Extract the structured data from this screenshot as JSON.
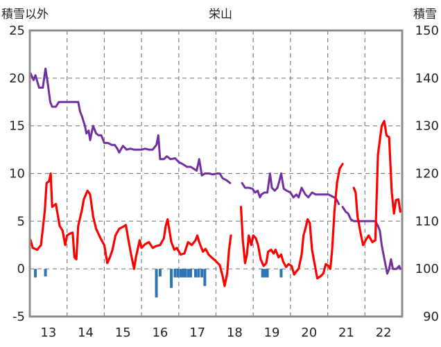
{
  "chart_data": {
    "type": "line",
    "title": "栄山",
    "ylabel_left": "積雪以外",
    "ylabel_right": "積雪",
    "x_ticks": [
      "13",
      "14",
      "15",
      "16",
      "17",
      "18",
      "19",
      "20",
      "21",
      "22"
    ],
    "xlim": [
      12.5,
      22.5
    ],
    "y_left_ticks": [
      "25",
      "20",
      "15",
      "10",
      "5",
      "0",
      "-5"
    ],
    "ylim_left": [
      -5,
      25
    ],
    "y_right_ticks": [
      "150",
      "140",
      "130",
      "120",
      "110",
      "100",
      "90"
    ],
    "ylim_right": [
      90,
      150
    ],
    "grid": "dashed",
    "colors": {
      "temperature": "#ff0000",
      "snow_depth": "#7030a0",
      "precipitation": "#2e75b6",
      "grid": "#808080"
    },
    "series": [
      {
        "axis": "left",
        "style": "line",
        "color": "#ff0000",
        "segments": [
          [
            [
              12.52,
              3
            ],
            [
              12.58,
              2.2
            ],
            [
              12.7,
              2
            ],
            [
              12.8,
              2.5
            ],
            [
              12.9,
              6
            ],
            [
              12.95,
              9
            ],
            [
              13.02,
              9.2
            ],
            [
              13.06,
              10
            ],
            [
              13.1,
              6.5
            ],
            [
              13.2,
              6.8
            ],
            [
              13.3,
              4.5
            ],
            [
              13.38,
              4
            ],
            [
              13.45,
              2.5
            ],
            [
              13.5,
              3.5
            ],
            [
              13.58,
              3.7
            ],
            [
              13.65,
              3.8
            ],
            [
              13.7,
              1.2
            ],
            [
              13.75,
              1
            ],
            [
              13.8,
              4.5
            ],
            [
              13.9,
              6.2
            ],
            [
              13.95,
              7.3
            ],
            [
              14.05,
              8.2
            ],
            [
              14.12,
              7.8
            ],
            [
              14.2,
              5.5
            ],
            [
              14.28,
              4.2
            ],
            [
              14.4,
              3.2
            ],
            [
              14.5,
              2.5
            ],
            [
              14.58,
              0.6
            ],
            [
              14.65,
              1.2
            ],
            [
              14.72,
              2
            ],
            [
              14.8,
              3.5
            ],
            [
              14.9,
              4.2
            ],
            [
              15.0,
              4.4
            ],
            [
              15.08,
              4.6
            ],
            [
              15.15,
              3
            ],
            [
              15.22,
              1.5
            ],
            [
              15.3,
              0
            ],
            [
              15.35,
              1.2
            ],
            [
              15.45,
              3
            ],
            [
              15.5,
              2.2
            ],
            [
              15.6,
              2.6
            ],
            [
              15.7,
              2.8
            ],
            [
              15.8,
              2.2
            ],
            [
              15.9,
              2.4
            ],
            [
              16.0,
              2.5
            ],
            [
              16.1,
              3.2
            ],
            [
              16.15,
              4.5
            ],
            [
              16.2,
              5.2
            ],
            [
              16.25,
              4
            ],
            [
              16.3,
              2.8
            ],
            [
              16.38,
              2
            ],
            [
              16.45,
              2.2
            ],
            [
              16.55,
              1.5
            ],
            [
              16.65,
              1.6
            ],
            [
              16.75,
              2.8
            ],
            [
              16.85,
              2.5
            ],
            [
              16.95,
              3
            ],
            [
              17.0,
              3.5
            ],
            [
              17.05,
              2.8
            ],
            [
              17.15,
              1.8
            ],
            [
              17.22,
              2.1
            ],
            [
              17.3,
              1.5
            ],
            [
              17.38,
              1.2
            ],
            [
              17.5,
              0.8
            ],
            [
              17.6,
              0.4
            ],
            [
              17.68,
              -0.8
            ],
            [
              17.73,
              -1.8
            ],
            [
              17.8,
              -0.5
            ],
            [
              17.85,
              2
            ],
            [
              17.9,
              3.5
            ]
          ],
          [
            [
              18.17,
              6.5
            ],
            [
              18.22,
              3
            ],
            [
              18.28,
              0.6
            ],
            [
              18.33,
              1.5
            ],
            [
              18.38,
              3.5
            ],
            [
              18.45,
              2.5
            ],
            [
              18.5,
              3.5
            ],
            [
              18.57,
              3.2
            ],
            [
              18.63,
              2.5
            ],
            [
              18.7,
              1
            ],
            [
              18.78,
              0.3
            ],
            [
              18.85,
              0.6
            ],
            [
              18.9,
              1.8
            ],
            [
              18.98,
              2
            ],
            [
              19.05,
              1.6
            ],
            [
              19.1,
              2
            ],
            [
              19.18,
              1.2
            ],
            [
              19.25,
              1.5
            ],
            [
              19.3,
              0.8
            ],
            [
              19.38,
              0.2
            ],
            [
              19.45,
              0.5
            ],
            [
              19.53,
              0.3
            ],
            [
              19.6,
              -0.6
            ],
            [
              19.65,
              -0.3
            ],
            [
              19.72,
              0
            ],
            [
              19.8,
              1.5
            ],
            [
              19.85,
              3.5
            ],
            [
              19.9,
              4.2
            ],
            [
              19.96,
              5.2
            ],
            [
              20.02,
              4.8
            ],
            [
              20.08,
              2
            ],
            [
              20.15,
              0.5
            ],
            [
              20.22,
              -1
            ],
            [
              20.3,
              -0.8
            ],
            [
              20.38,
              -0.5
            ],
            [
              20.45,
              0.5
            ],
            [
              20.52,
              0.3
            ],
            [
              20.57,
              0
            ],
            [
              20.62,
              2
            ],
            [
              20.68,
              6
            ],
            [
              20.75,
              9
            ],
            [
              20.82,
              10.5
            ],
            [
              20.9,
              11
            ]
          ],
          [
            [
              21.2,
              8.5
            ],
            [
              21.25,
              8
            ],
            [
              21.3,
              5.5
            ],
            [
              21.38,
              3.8
            ],
            [
              21.45,
              2.5
            ],
            [
              21.52,
              3
            ],
            [
              21.6,
              3.5
            ],
            [
              21.7,
              2.8
            ],
            [
              21.78,
              3
            ],
            [
              21.85,
              12
            ],
            [
              21.9,
              13.5
            ],
            [
              21.95,
              15
            ],
            [
              22.02,
              15.5
            ],
            [
              22.08,
              14
            ],
            [
              22.15,
              13.8
            ],
            [
              22.22,
              8
            ],
            [
              22.28,
              5.8
            ],
            [
              22.33,
              7.2
            ],
            [
              22.4,
              7.3
            ],
            [
              22.45,
              6
            ]
          ]
        ]
      },
      {
        "axis": "left",
        "style": "line",
        "color": "#7030a0",
        "segments": [
          [
            [
              12.52,
              20.5
            ],
            [
              12.6,
              19.8
            ],
            [
              12.65,
              20.3
            ],
            [
              12.75,
              19
            ],
            [
              12.85,
              19
            ],
            [
              12.92,
              21
            ],
            [
              12.98,
              19.5
            ],
            [
              13.05,
              17.5
            ],
            [
              13.1,
              17
            ],
            [
              13.2,
              17
            ],
            [
              13.28,
              17.5
            ],
            [
              13.4,
              17.5
            ],
            [
              13.55,
              17.5
            ],
            [
              13.7,
              17.5
            ],
            [
              13.8,
              17.5
            ],
            [
              13.85,
              16.5
            ],
            [
              13.9,
              16
            ],
            [
              13.98,
              15
            ],
            [
              14.02,
              14.2
            ],
            [
              14.08,
              14.5
            ],
            [
              14.12,
              13.5
            ],
            [
              14.2,
              15
            ],
            [
              14.28,
              14.2
            ],
            [
              14.35,
              14
            ],
            [
              14.42,
              14
            ],
            [
              14.5,
              13.2
            ],
            [
              14.6,
              13.2
            ],
            [
              14.7,
              13
            ],
            [
              14.78,
              13
            ],
            [
              14.85,
              12.6
            ],
            [
              14.9,
              12.2
            ],
            [
              15.0,
              12.9
            ],
            [
              15.1,
              12.5
            ],
            [
              15.2,
              12.6
            ],
            [
              15.3,
              12.5
            ],
            [
              15.4,
              12.5
            ],
            [
              15.5,
              12.5
            ],
            [
              15.6,
              12.6
            ],
            [
              15.7,
              12.5
            ],
            [
              15.8,
              12.5
            ],
            [
              15.9,
              13
            ],
            [
              15.95,
              14
            ],
            [
              16.0,
              11.5
            ],
            [
              16.1,
              11.5
            ],
            [
              16.18,
              11.8
            ],
            [
              16.28,
              11.5
            ],
            [
              16.4,
              11.6
            ],
            [
              16.5,
              11.2
            ],
            [
              16.6,
              11
            ],
            [
              16.72,
              10.7
            ],
            [
              16.82,
              10.7
            ],
            [
              16.9,
              10.5
            ],
            [
              16.98,
              10.3
            ],
            [
              17.05,
              11.5
            ],
            [
              17.12,
              9.8
            ],
            [
              17.2,
              10
            ],
            [
              17.32,
              10
            ],
            [
              17.42,
              9.9
            ],
            [
              17.52,
              10
            ],
            [
              17.6,
              10
            ],
            [
              17.68,
              9.5
            ],
            [
              17.78,
              9.3
            ],
            [
              17.88,
              9
            ]
          ],
          [
            [
              18.2,
              9
            ],
            [
              18.28,
              8.5
            ],
            [
              18.38,
              8.5
            ],
            [
              18.48,
              8.4
            ],
            [
              18.55,
              8
            ],
            [
              18.62,
              8.2
            ],
            [
              18.68,
              7.5
            ],
            [
              18.72,
              7.8
            ],
            [
              18.8,
              8
            ],
            [
              18.88,
              8
            ],
            [
              18.95,
              10
            ],
            [
              19.0,
              8.5
            ],
            [
              19.08,
              8.2
            ],
            [
              19.15,
              8.5
            ],
            [
              19.2,
              9.2
            ],
            [
              19.25,
              10
            ],
            [
              19.32,
              8.4
            ],
            [
              19.4,
              8.2
            ],
            [
              19.5,
              8
            ],
            [
              19.58,
              7.5
            ],
            [
              19.66,
              7.8
            ],
            [
              19.72,
              7.5
            ],
            [
              19.8,
              8.5
            ],
            [
              19.9,
              7.8
            ],
            [
              19.98,
              7.5
            ],
            [
              20.08,
              8
            ],
            [
              20.18,
              7.8
            ],
            [
              20.28,
              7.8
            ],
            [
              20.4,
              7.8
            ],
            [
              20.52,
              7.8
            ],
            [
              20.62,
              7.6
            ],
            [
              20.72,
              7.4
            ],
            [
              20.8,
              6.8
            ]
          ],
          [
            [
              20.9,
              6.5
            ],
            [
              20.98,
              6
            ],
            [
              21.05,
              5.8
            ],
            [
              21.12,
              5.2
            ],
            [
              21.2,
              5
            ],
            [
              21.3,
              5
            ],
            [
              21.45,
              5
            ],
            [
              21.62,
              5
            ],
            [
              21.78,
              5
            ],
            [
              21.85,
              4.5
            ],
            [
              21.9,
              4
            ],
            [
              21.95,
              2.5
            ],
            [
              22.0,
              1.5
            ],
            [
              22.05,
              0.5
            ],
            [
              22.1,
              -0.5
            ],
            [
              22.15,
              0
            ],
            [
              22.2,
              1
            ],
            [
              22.25,
              0
            ],
            [
              22.35,
              0
            ],
            [
              22.42,
              0.3
            ],
            [
              22.45,
              0
            ]
          ]
        ]
      },
      {
        "axis": "left",
        "style": "bar",
        "color": "#2e75b6",
        "bars": [
          [
            12.65,
            -0.9
          ],
          [
            12.92,
            -0.8
          ],
          [
            15.9,
            -3
          ],
          [
            16.0,
            -0.8
          ],
          [
            16.3,
            -2
          ],
          [
            16.4,
            -0.9
          ],
          [
            16.48,
            -0.9
          ],
          [
            16.56,
            -0.9
          ],
          [
            16.62,
            -0.9
          ],
          [
            16.68,
            -0.9
          ],
          [
            16.76,
            -0.9
          ],
          [
            16.82,
            -0.9
          ],
          [
            16.95,
            -0.9
          ],
          [
            17.03,
            -0.9
          ],
          [
            17.12,
            -0.9
          ],
          [
            17.2,
            -1.8
          ],
          [
            18.75,
            -0.9
          ],
          [
            18.82,
            -0.9
          ],
          [
            18.88,
            -0.9
          ],
          [
            19.25,
            -0.9
          ]
        ]
      }
    ]
  }
}
